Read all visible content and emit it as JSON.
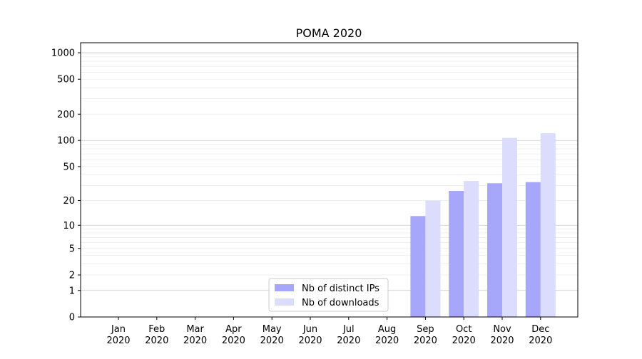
{
  "chart_data": {
    "type": "bar",
    "title": "POMA 2020",
    "xlabel": "",
    "ylabel": "",
    "yscale": "log1p",
    "ylim": [
      0,
      1300
    ],
    "yticks": [
      0,
      1,
      2,
      5,
      10,
      20,
      50,
      100,
      200,
      500,
      1000
    ],
    "categories": [
      "Jan\n2020",
      "Feb\n2020",
      "Mar\n2020",
      "Apr\n2020",
      "May\n2020",
      "Jun\n2020",
      "Jul\n2020",
      "Aug\n2020",
      "Sep\n2020",
      "Oct\n2020",
      "Nov\n2020",
      "Dec\n2020"
    ],
    "series": [
      {
        "name": "Nb of distinct IPs",
        "color": "#a6a6fb",
        "values": [
          0,
          0,
          0,
          0,
          0,
          0,
          0,
          0,
          13,
          26,
          32,
          33
        ]
      },
      {
        "name": "Nb of downloads",
        "color": "#dcdcfd",
        "values": [
          0,
          0,
          0,
          0,
          0,
          0,
          0,
          0,
          20,
          34,
          107,
          121
        ]
      }
    ],
    "grid": "horizontal",
    "legend": "bottom-center"
  }
}
